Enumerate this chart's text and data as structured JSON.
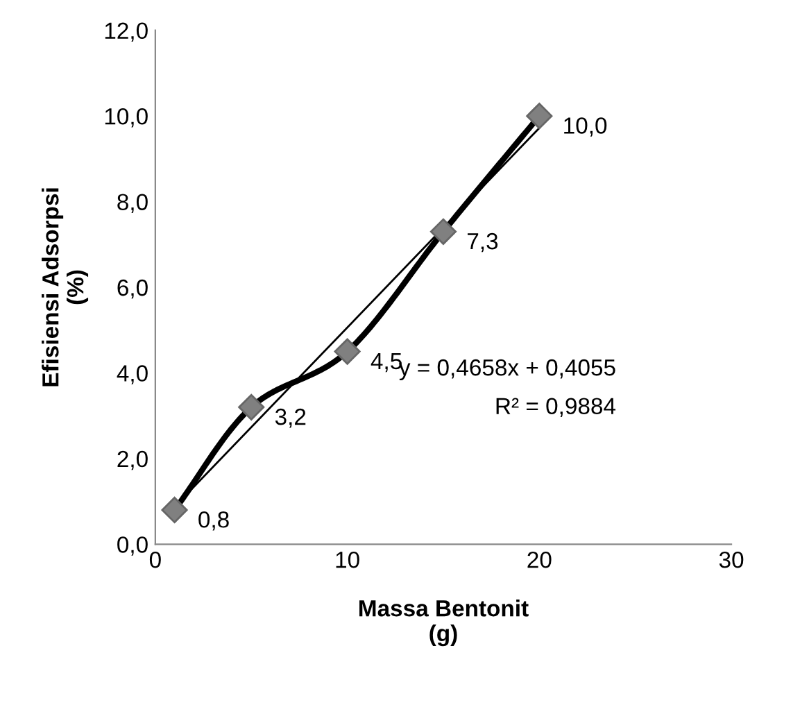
{
  "chart_data": {
    "type": "line",
    "xlabel": "Massa Bentonit\n(g)",
    "ylabel": "Efisiensi Adsorpsi\n(%)",
    "xlim": [
      0,
      30
    ],
    "xticks": [
      0,
      10,
      20,
      30
    ],
    "ylim": [
      0,
      12
    ],
    "yticks": [
      {
        "value": 0,
        "label": "0,0"
      },
      {
        "value": 2,
        "label": "2,0"
      },
      {
        "value": 4,
        "label": "4,0"
      },
      {
        "value": 6,
        "label": "6,0"
      },
      {
        "value": 8,
        "label": "8,0"
      },
      {
        "value": 10,
        "label": "10,0"
      },
      {
        "value": 12,
        "label": "12,0"
      }
    ],
    "grid": false,
    "legend": false,
    "series": [
      {
        "color": "#000000",
        "marker": "diamond",
        "x": [
          1,
          5,
          10,
          15,
          20
        ],
        "values": [
          0.8,
          3.2,
          4.5,
          7.3,
          10.0
        ],
        "value_labels": [
          "0,8",
          "3,2",
          "4,5",
          "7,3",
          "10,0"
        ]
      },
      {
        "color": "#000000",
        "marker": "none",
        "x": [
          1,
          20
        ],
        "values": [
          0.87,
          9.72
        ]
      }
    ],
    "annotations": [
      "y = 0,4658x + 0,4055",
      "R² = 0,9884"
    ]
  }
}
